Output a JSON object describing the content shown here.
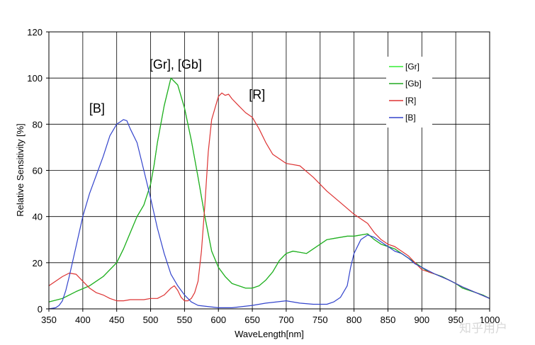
{
  "chart_data": {
    "type": "line",
    "title": "",
    "xlabel": "WaveLength[nm]",
    "ylabel": "Relative Sensitivity [%]",
    "xlim": [
      350,
      1000
    ],
    "ylim": [
      0,
      120
    ],
    "x_ticks": [
      350,
      400,
      450,
      500,
      550,
      600,
      650,
      700,
      750,
      800,
      850,
      900,
      950,
      1000
    ],
    "y_ticks": [
      0,
      20,
      40,
      60,
      80,
      100,
      120
    ],
    "x_tick_labels": [
      "350",
      "400",
      "450",
      "500",
      "550",
      "600",
      "650",
      "700",
      "750",
      "800",
      "850",
      "900",
      "950",
      "1000"
    ],
    "y_tick_labels": [
      "0",
      "20",
      "40",
      "60",
      "80",
      "100",
      "120"
    ],
    "grid": true,
    "legend_position": "top-right",
    "series": [
      {
        "name": "[Gr]",
        "color": "#33ee33",
        "points": [
          [
            350,
            3
          ],
          [
            370,
            4.5
          ],
          [
            390,
            7.5
          ],
          [
            410,
            10
          ],
          [
            430,
            14
          ],
          [
            450,
            20
          ],
          [
            460,
            26
          ],
          [
            470,
            33
          ],
          [
            480,
            40
          ],
          [
            490,
            45
          ],
          [
            500,
            54
          ],
          [
            505,
            62
          ],
          [
            510,
            72
          ],
          [
            520,
            88
          ],
          [
            530,
            100
          ],
          [
            540,
            97
          ],
          [
            550,
            87
          ],
          [
            560,
            73
          ],
          [
            570,
            57
          ],
          [
            580,
            40
          ],
          [
            590,
            25
          ],
          [
            600,
            18
          ],
          [
            610,
            14
          ],
          [
            620,
            11
          ],
          [
            640,
            9
          ],
          [
            650,
            9
          ],
          [
            660,
            10
          ],
          [
            670,
            12.5
          ],
          [
            680,
            16
          ],
          [
            690,
            21
          ],
          [
            700,
            24
          ],
          [
            710,
            25
          ],
          [
            720,
            24.5
          ],
          [
            730,
            24
          ],
          [
            740,
            26
          ],
          [
            750,
            28
          ],
          [
            760,
            30
          ],
          [
            770,
            30.5
          ],
          [
            780,
            31
          ],
          [
            790,
            31.5
          ],
          [
            800,
            31.5
          ],
          [
            810,
            32
          ],
          [
            820,
            32.5
          ],
          [
            830,
            30
          ],
          [
            840,
            28
          ],
          [
            850,
            27
          ],
          [
            860,
            26
          ],
          [
            870,
            24
          ],
          [
            880,
            22
          ],
          [
            890,
            20
          ],
          [
            900,
            18
          ],
          [
            910,
            16
          ],
          [
            920,
            15
          ],
          [
            930,
            14
          ],
          [
            940,
            12.5
          ],
          [
            950,
            11
          ],
          [
            960,
            9
          ],
          [
            970,
            8
          ],
          [
            980,
            7
          ],
          [
            990,
            6
          ],
          [
            1000,
            4.5
          ]
        ]
      },
      {
        "name": "[Gb]",
        "color": "#22aa22",
        "points": [
          [
            350,
            3
          ],
          [
            370,
            4.5
          ],
          [
            390,
            7.5
          ],
          [
            410,
            10
          ],
          [
            430,
            14
          ],
          [
            450,
            20
          ],
          [
            460,
            26
          ],
          [
            470,
            33
          ],
          [
            480,
            40
          ],
          [
            490,
            45
          ],
          [
            500,
            54
          ],
          [
            505,
            62
          ],
          [
            510,
            72
          ],
          [
            520,
            88
          ],
          [
            530,
            100
          ],
          [
            540,
            97
          ],
          [
            550,
            87
          ],
          [
            560,
            73
          ],
          [
            570,
            57
          ],
          [
            580,
            40
          ],
          [
            590,
            25
          ],
          [
            600,
            18
          ],
          [
            610,
            14
          ],
          [
            620,
            11
          ],
          [
            640,
            9
          ],
          [
            650,
            9
          ],
          [
            660,
            10
          ],
          [
            670,
            12.5
          ],
          [
            680,
            16
          ],
          [
            690,
            21
          ],
          [
            700,
            24
          ],
          [
            710,
            25
          ],
          [
            720,
            24.5
          ],
          [
            730,
            24
          ],
          [
            740,
            26
          ],
          [
            750,
            28
          ],
          [
            760,
            30
          ],
          [
            770,
            30.5
          ],
          [
            780,
            31
          ],
          [
            790,
            31.5
          ],
          [
            800,
            31.5
          ],
          [
            810,
            32
          ],
          [
            820,
            32.5
          ],
          [
            830,
            30
          ],
          [
            840,
            28
          ],
          [
            850,
            27
          ],
          [
            860,
            26
          ],
          [
            870,
            24
          ],
          [
            880,
            22
          ],
          [
            890,
            20
          ],
          [
            900,
            18
          ],
          [
            910,
            16
          ],
          [
            920,
            15
          ],
          [
            930,
            14
          ],
          [
            940,
            12.5
          ],
          [
            950,
            11
          ],
          [
            960,
            9
          ],
          [
            970,
            8
          ],
          [
            980,
            7
          ],
          [
            990,
            6
          ],
          [
            1000,
            4.5
          ]
        ]
      },
      {
        "name": "[R]",
        "color": "#dd3333",
        "points": [
          [
            350,
            10
          ],
          [
            360,
            12
          ],
          [
            370,
            14
          ],
          [
            380,
            15.5
          ],
          [
            390,
            15
          ],
          [
            400,
            12
          ],
          [
            410,
            9
          ],
          [
            420,
            7
          ],
          [
            430,
            6
          ],
          [
            440,
            4.5
          ],
          [
            450,
            3.5
          ],
          [
            460,
            3.5
          ],
          [
            470,
            4
          ],
          [
            480,
            4
          ],
          [
            490,
            4
          ],
          [
            500,
            4.5
          ],
          [
            510,
            4.5
          ],
          [
            520,
            6
          ],
          [
            530,
            9
          ],
          [
            535,
            10
          ],
          [
            540,
            8
          ],
          [
            545,
            5
          ],
          [
            550,
            3.5
          ],
          [
            555,
            3.5
          ],
          [
            560,
            4.5
          ],
          [
            565,
            7
          ],
          [
            570,
            12
          ],
          [
            575,
            25
          ],
          [
            580,
            45
          ],
          [
            585,
            68
          ],
          [
            590,
            82
          ],
          [
            600,
            92
          ],
          [
            605,
            93.5
          ],
          [
            610,
            92.5
          ],
          [
            615,
            93
          ],
          [
            620,
            91
          ],
          [
            630,
            88
          ],
          [
            640,
            85
          ],
          [
            650,
            83
          ],
          [
            660,
            78
          ],
          [
            670,
            72
          ],
          [
            680,
            67
          ],
          [
            690,
            65
          ],
          [
            700,
            63
          ],
          [
            720,
            62
          ],
          [
            740,
            57
          ],
          [
            760,
            51
          ],
          [
            780,
            46
          ],
          [
            800,
            41
          ],
          [
            810,
            39
          ],
          [
            820,
            37
          ],
          [
            830,
            33
          ],
          [
            840,
            30
          ],
          [
            850,
            28
          ],
          [
            860,
            27
          ],
          [
            870,
            25
          ],
          [
            880,
            23
          ],
          [
            890,
            20
          ],
          [
            900,
            17
          ],
          [
            920,
            15
          ],
          [
            940,
            12.5
          ],
          [
            960,
            9.5
          ],
          [
            980,
            7
          ],
          [
            1000,
            4.5
          ]
        ]
      },
      {
        "name": "[B]",
        "color": "#3344cc",
        "points": [
          [
            350,
            0
          ],
          [
            360,
            0.5
          ],
          [
            365,
            1.5
          ],
          [
            370,
            3.5
          ],
          [
            375,
            8
          ],
          [
            380,
            14
          ],
          [
            390,
            27
          ],
          [
            400,
            40
          ],
          [
            410,
            50
          ],
          [
            420,
            58
          ],
          [
            430,
            66
          ],
          [
            440,
            75
          ],
          [
            450,
            80
          ],
          [
            455,
            81
          ],
          [
            460,
            82
          ],
          [
            465,
            81.5
          ],
          [
            470,
            78
          ],
          [
            480,
            72
          ],
          [
            490,
            60
          ],
          [
            500,
            48
          ],
          [
            510,
            35
          ],
          [
            520,
            24
          ],
          [
            530,
            15
          ],
          [
            540,
            10
          ],
          [
            550,
            6
          ],
          [
            560,
            3
          ],
          [
            570,
            1.5
          ],
          [
            600,
            0.5
          ],
          [
            620,
            0.5
          ],
          [
            650,
            1.5
          ],
          [
            670,
            2.5
          ],
          [
            700,
            3.5
          ],
          [
            720,
            2.5
          ],
          [
            740,
            2
          ],
          [
            760,
            2
          ],
          [
            770,
            3
          ],
          [
            780,
            5
          ],
          [
            790,
            10
          ],
          [
            795,
            18
          ],
          [
            800,
            24
          ],
          [
            810,
            30
          ],
          [
            820,
            32
          ],
          [
            830,
            31
          ],
          [
            840,
            29
          ],
          [
            850,
            27
          ],
          [
            860,
            25
          ],
          [
            870,
            24
          ],
          [
            880,
            22
          ],
          [
            890,
            19.5
          ],
          [
            900,
            18
          ],
          [
            920,
            15
          ],
          [
            940,
            12.5
          ],
          [
            960,
            9.5
          ],
          [
            980,
            7
          ],
          [
            1000,
            4.5
          ]
        ]
      }
    ],
    "annotations": [
      {
        "text": "[Gr], [Gb]",
        "x": 537,
        "y": 104
      },
      {
        "text": "[B]",
        "x": 421,
        "y": 85
      },
      {
        "text": "[R]",
        "x": 657,
        "y": 91
      }
    ]
  },
  "watermark": "知乎用户"
}
